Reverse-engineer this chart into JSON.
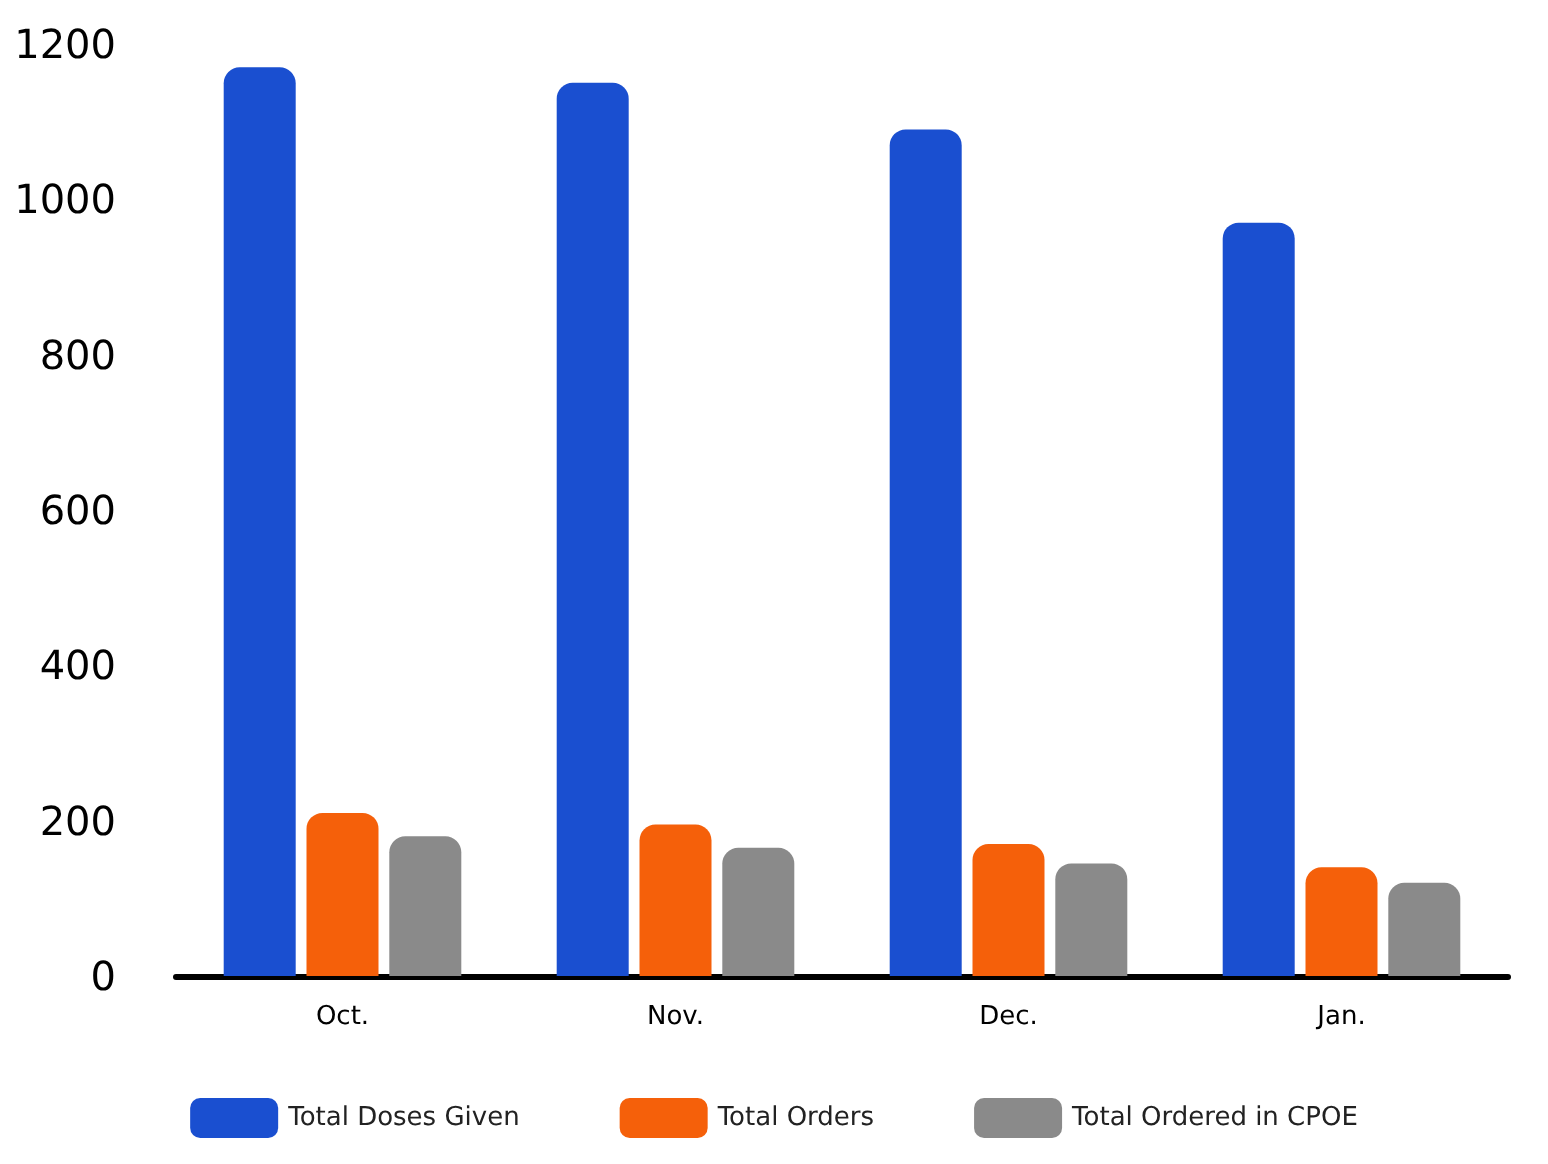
{
  "chart_data": {
    "type": "bar",
    "categories": [
      "Oct.",
      "Nov.",
      "Dec.",
      "Jan."
    ],
    "series": [
      {
        "name": "Total Doses Given",
        "color": "#1a4fd0",
        "values": [
          1170,
          1150,
          1090,
          970
        ]
      },
      {
        "name": "Total Orders",
        "color": "#f5600a",
        "values": [
          210,
          195,
          170,
          140
        ]
      },
      {
        "name": "Total Ordered in CPOE",
        "color": "#8a8a8a",
        "values": [
          180,
          165,
          145,
          120
        ]
      }
    ],
    "ylim": [
      0,
      1200
    ],
    "yticks": [
      0,
      200,
      400,
      600,
      800,
      1000,
      1200
    ],
    "grid": false,
    "legend": "bottom"
  }
}
